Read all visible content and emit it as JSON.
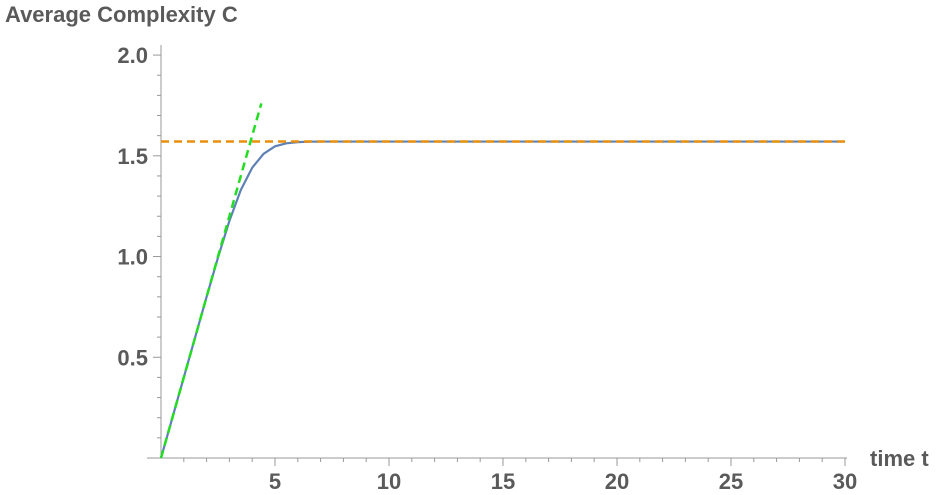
{
  "chart_data": {
    "type": "line",
    "title": "",
    "xlabel": "time t",
    "ylabel": "Average Complexity C",
    "xlim": [
      0,
      30
    ],
    "ylim": [
      0,
      2.05
    ],
    "xticks": [
      5,
      10,
      15,
      20,
      25,
      30
    ],
    "yticks": [
      0.5,
      1.0,
      1.5,
      2.0
    ],
    "ytick_labels": [
      "0.5",
      "1.0",
      "1.5",
      "2.0"
    ],
    "grid": false,
    "legend": "none",
    "series": [
      {
        "style": "solid",
        "color": "#5e81b5",
        "x": [
          0,
          0.5,
          1,
          1.5,
          2,
          2.5,
          3,
          3.5,
          4,
          4.5,
          5,
          5.5,
          6,
          6.5,
          7,
          7.5,
          8,
          9,
          10,
          12,
          15,
          20,
          25,
          30
        ],
        "y": [
          0,
          0.2,
          0.4,
          0.6,
          0.8,
          0.995,
          1.177,
          1.33,
          1.441,
          1.51,
          1.547,
          1.562,
          1.568,
          1.57,
          1.5706,
          1.5708,
          1.5708,
          1.5708,
          1.5708,
          1.5708,
          1.5708,
          1.5708,
          1.5708,
          1.5708
        ]
      },
      {
        "style": "dashed",
        "color": "#22dd22",
        "x": [
          0,
          4.4
        ],
        "y": [
          0,
          1.76
        ]
      },
      {
        "style": "dashed",
        "color": "#e8900c",
        "x": [
          0,
          30
        ],
        "y": [
          1.5708,
          1.5708
        ]
      }
    ]
  }
}
